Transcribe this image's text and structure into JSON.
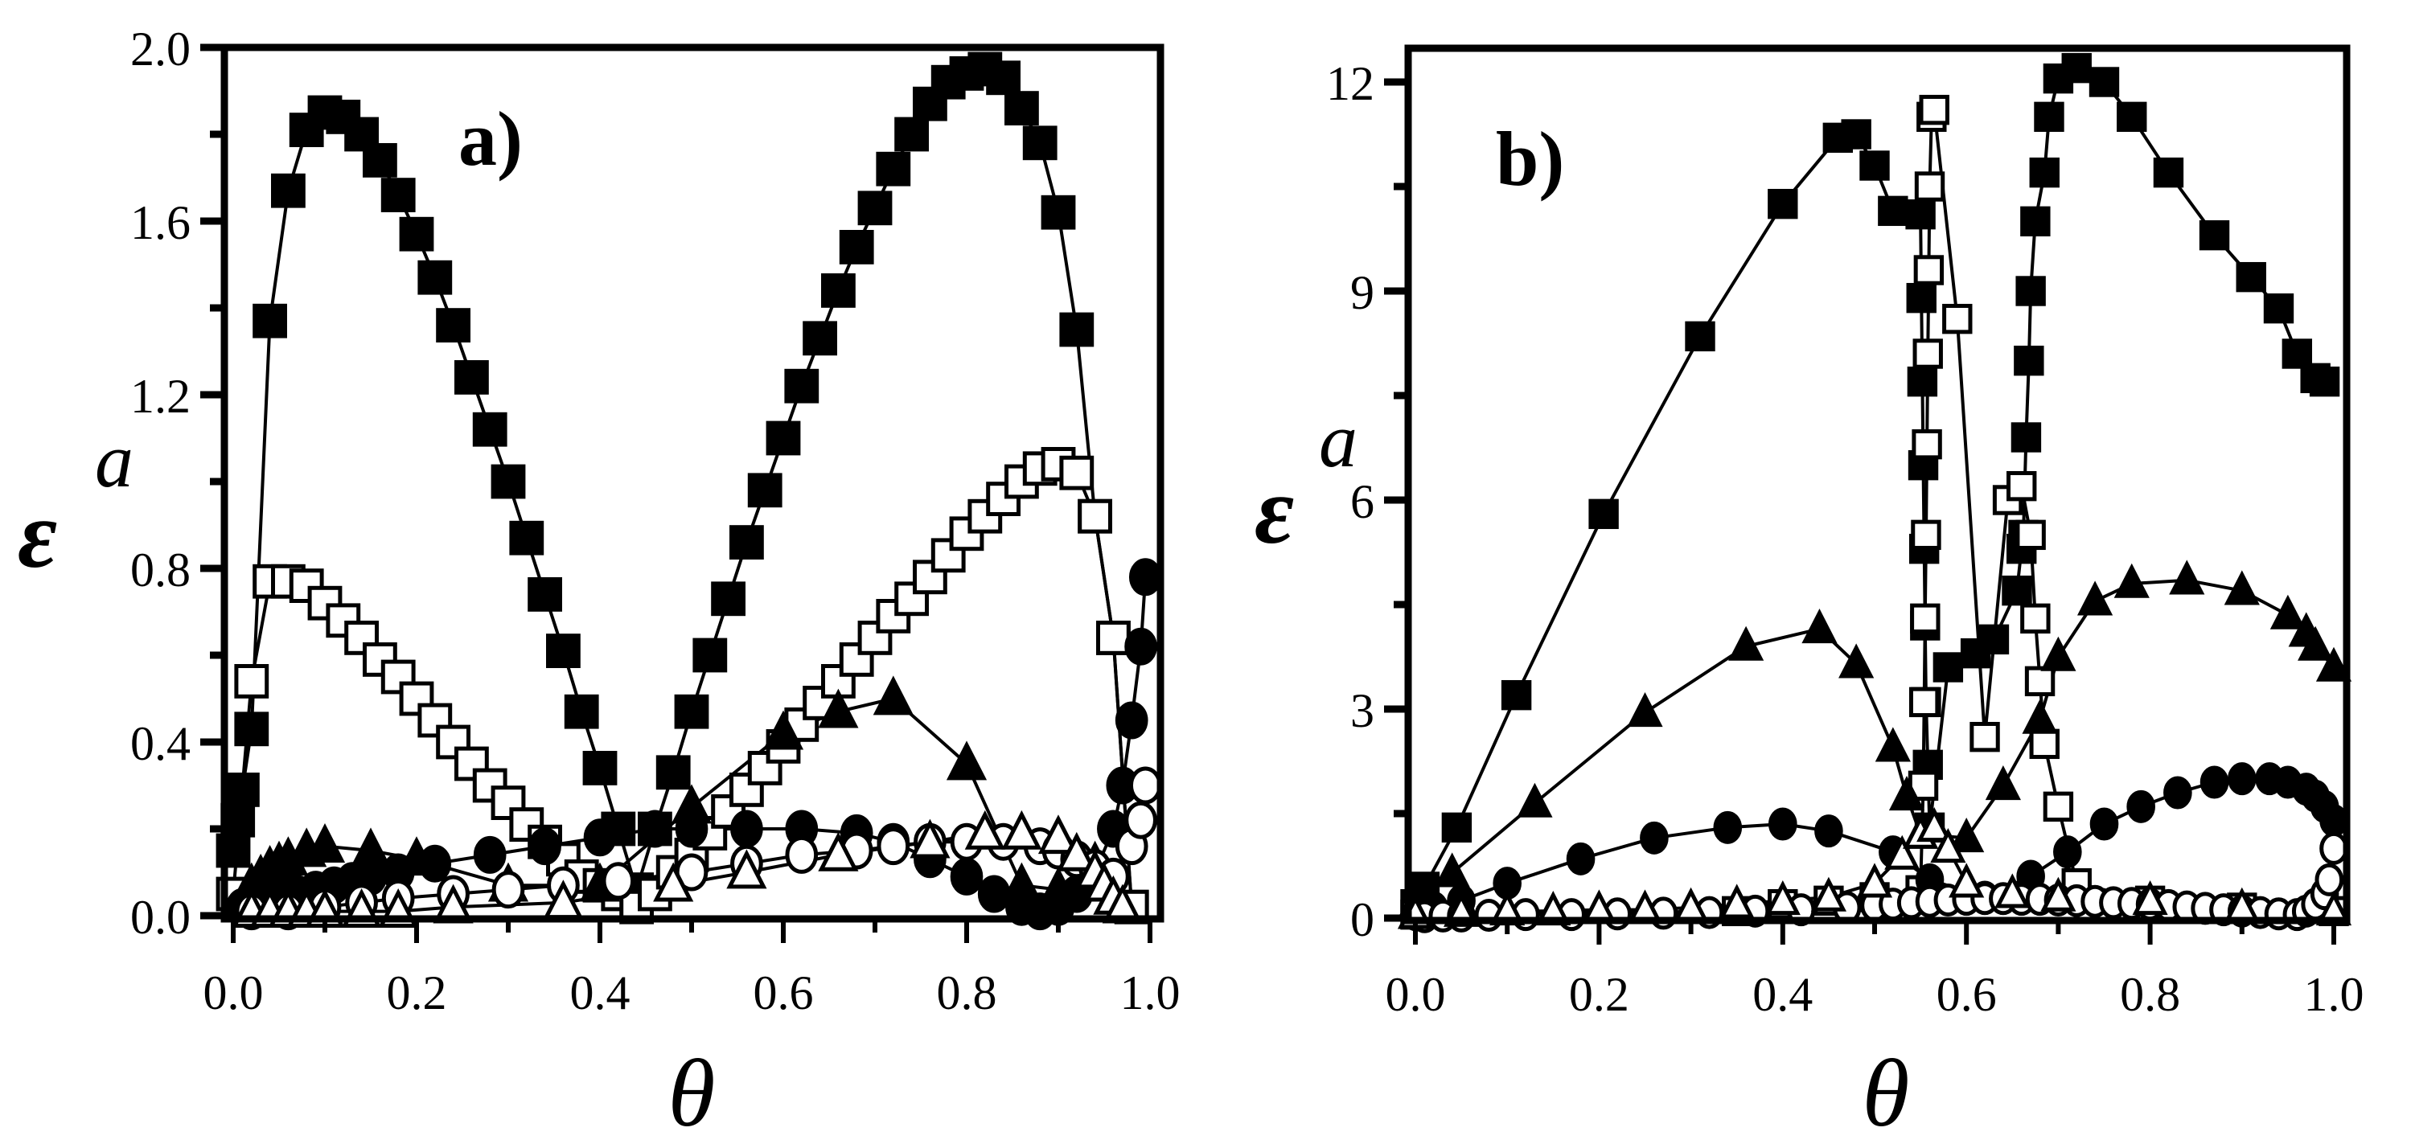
{
  "figure": {
    "panels": [
      {
        "tag": "a)",
        "xlabel": "θ",
        "ylabel_main": "ε",
        "ylabel_sup": "a"
      },
      {
        "tag": "b)",
        "xlabel": "θ",
        "ylabel_main": "ε",
        "ylabel_sup": "a"
      }
    ]
  },
  "chart_data": [
    {
      "type": "line",
      "title": "a)",
      "xlabel": "θ",
      "ylabel": "ε^a",
      "xlim": [
        0.0,
        1.0
      ],
      "ylim": [
        0.0,
        2.0
      ],
      "xticks": [
        0.0,
        0.2,
        0.4,
        0.6,
        0.8,
        1.0
      ],
      "xtick_labels": [
        "0.0",
        "0.2",
        "0.4",
        "0.6",
        "0.8",
        "1.0"
      ],
      "yticks": [
        0.0,
        0.4,
        0.8,
        1.2,
        1.6,
        2.0
      ],
      "ytick_labels": [
        "0.0",
        "0.4",
        "0.8",
        "1.2",
        "1.6",
        "2.0"
      ],
      "grid": false,
      "legend": null,
      "series": [
        {
          "name": "filled squares",
          "marker": "square-filled",
          "x": [
            0.0,
            0.005,
            0.01,
            0.02,
            0.04,
            0.06,
            0.08,
            0.1,
            0.12,
            0.14,
            0.16,
            0.18,
            0.2,
            0.22,
            0.24,
            0.26,
            0.28,
            0.3,
            0.32,
            0.34,
            0.36,
            0.38,
            0.4,
            0.42,
            0.44,
            0.46,
            0.48,
            0.5,
            0.52,
            0.54,
            0.56,
            0.58,
            0.6,
            0.62,
            0.64,
            0.66,
            0.68,
            0.7,
            0.72,
            0.74,
            0.76,
            0.78,
            0.8,
            0.82,
            0.84,
            0.86,
            0.88,
            0.9,
            0.92,
            0.94,
            0.96,
            0.98
          ],
          "y": [
            0.15,
            0.22,
            0.29,
            0.43,
            1.37,
            1.67,
            1.81,
            1.85,
            1.84,
            1.8,
            1.74,
            1.66,
            1.57,
            1.47,
            1.36,
            1.24,
            1.12,
            1.0,
            0.87,
            0.74,
            0.61,
            0.47,
            0.34,
            0.2,
            0.06,
            0.2,
            0.33,
            0.47,
            0.6,
            0.73,
            0.86,
            0.98,
            1.1,
            1.22,
            1.33,
            1.44,
            1.54,
            1.63,
            1.72,
            1.8,
            1.87,
            1.92,
            1.94,
            1.95,
            1.93,
            1.86,
            1.78,
            1.62,
            1.35,
            0.92,
            0.64,
            0.02
          ]
        },
        {
          "name": "open squares",
          "marker": "square-open",
          "x": [
            0.0,
            0.02,
            0.04,
            0.06,
            0.08,
            0.1,
            0.12,
            0.14,
            0.16,
            0.18,
            0.2,
            0.22,
            0.24,
            0.26,
            0.28,
            0.3,
            0.32,
            0.34,
            0.36,
            0.38,
            0.4,
            0.42,
            0.44,
            0.46,
            0.48,
            0.5,
            0.52,
            0.54,
            0.56,
            0.58,
            0.6,
            0.62,
            0.64,
            0.66,
            0.68,
            0.7,
            0.72,
            0.74,
            0.76,
            0.78,
            0.8,
            0.82,
            0.84,
            0.86,
            0.88,
            0.9,
            0.92,
            0.94,
            0.96,
            0.98
          ],
          "y": [
            0.05,
            0.54,
            0.77,
            0.77,
            0.76,
            0.72,
            0.68,
            0.64,
            0.59,
            0.55,
            0.5,
            0.45,
            0.4,
            0.35,
            0.3,
            0.26,
            0.21,
            0.17,
            0.13,
            0.09,
            0.07,
            0.05,
            0.02,
            0.05,
            0.1,
            0.14,
            0.19,
            0.24,
            0.29,
            0.34,
            0.39,
            0.44,
            0.49,
            0.54,
            0.59,
            0.64,
            0.69,
            0.73,
            0.78,
            0.83,
            0.88,
            0.92,
            0.96,
            1.0,
            1.03,
            1.04,
            1.02,
            0.92,
            0.64,
            0.02
          ]
        },
        {
          "name": "filled triangles",
          "marker": "triangle-filled",
          "x": [
            0.02,
            0.03,
            0.04,
            0.05,
            0.06,
            0.08,
            0.1,
            0.15,
            0.2,
            0.3,
            0.4,
            0.5,
            0.6,
            0.66,
            0.72,
            0.8,
            0.86,
            0.9,
            0.94
          ],
          "y": [
            0.07,
            0.09,
            0.11,
            0.12,
            0.13,
            0.15,
            0.16,
            0.15,
            0.13,
            0.07,
            0.07,
            0.25,
            0.42,
            0.47,
            0.5,
            0.35,
            0.07,
            0.06,
            0.12
          ],
          "curve_points": [
            0.72,
            0.82
          ]
        },
        {
          "name": "filled circles",
          "marker": "circle-filled",
          "x": [
            0.01,
            0.03,
            0.05,
            0.07,
            0.09,
            0.11,
            0.13,
            0.15,
            0.18,
            0.22,
            0.28,
            0.34,
            0.4,
            0.46,
            0.5,
            0.56,
            0.62,
            0.68,
            0.72,
            0.76,
            0.8,
            0.83,
            0.86,
            0.88,
            0.9,
            0.92,
            0.94,
            0.96,
            0.97,
            0.98,
            0.99,
            0.995
          ],
          "y": [
            0.02,
            0.03,
            0.04,
            0.05,
            0.06,
            0.07,
            0.08,
            0.09,
            0.1,
            0.12,
            0.14,
            0.16,
            0.18,
            0.2,
            0.2,
            0.2,
            0.2,
            0.19,
            0.17,
            0.13,
            0.09,
            0.05,
            0.02,
            0.01,
            0.02,
            0.05,
            0.1,
            0.2,
            0.3,
            0.45,
            0.62,
            0.78
          ]
        },
        {
          "name": "open circles",
          "marker": "circle-open",
          "x": [
            0.02,
            0.06,
            0.1,
            0.14,
            0.18,
            0.24,
            0.3,
            0.36,
            0.42,
            0.5,
            0.56,
            0.62,
            0.68,
            0.72,
            0.76,
            0.8,
            0.84,
            0.88,
            0.9,
            0.92,
            0.94,
            0.96,
            0.98,
            0.99,
            0.995
          ],
          "y": [
            0.01,
            0.01,
            0.02,
            0.03,
            0.04,
            0.05,
            0.06,
            0.07,
            0.08,
            0.1,
            0.12,
            0.14,
            0.15,
            0.16,
            0.17,
            0.17,
            0.17,
            0.16,
            0.15,
            0.13,
            0.11,
            0.09,
            0.16,
            0.22,
            0.3
          ]
        },
        {
          "name": "open triangles",
          "marker": "triangle-open",
          "x": [
            0.02,
            0.04,
            0.06,
            0.08,
            0.1,
            0.14,
            0.18,
            0.24,
            0.36,
            0.48,
            0.56,
            0.66,
            0.76,
            0.82,
            0.86,
            0.9,
            0.92,
            0.94,
            0.95,
            0.96,
            0.97
          ],
          "y": [
            0.01,
            0.01,
            0.01,
            0.01,
            0.01,
            0.01,
            0.01,
            0.02,
            0.03,
            0.07,
            0.1,
            0.14,
            0.17,
            0.19,
            0.19,
            0.18,
            0.14,
            0.1,
            0.07,
            0.04,
            0.02
          ]
        }
      ]
    },
    {
      "type": "line",
      "title": "b)",
      "xlabel": "θ",
      "ylabel": "ε^a",
      "xlim": [
        0.0,
        1.0
      ],
      "ylim": [
        0.0,
        12.6
      ],
      "xticks": [
        0.0,
        0.2,
        0.4,
        0.6,
        0.8,
        1.0
      ],
      "xtick_labels": [
        "0.0",
        "0.2",
        "0.4",
        "0.6",
        "0.8",
        "1.0"
      ],
      "yticks": [
        0,
        3,
        6,
        9,
        12
      ],
      "ytick_labels": [
        "0",
        "3",
        "6",
        "9",
        "12"
      ],
      "grid": false,
      "legend": null,
      "series": [
        {
          "name": "filled squares",
          "marker": "square-filled",
          "x": [
            0.0,
            0.01,
            0.045,
            0.11,
            0.205,
            0.31,
            0.4,
            0.46,
            0.48,
            0.5,
            0.52,
            0.55,
            0.551,
            0.552,
            0.553,
            0.554,
            0.555,
            0.556,
            0.558,
            0.56,
            0.58,
            0.61,
            0.63,
            0.655,
            0.66,
            0.662,
            0.665,
            0.668,
            0.67,
            0.675,
            0.685,
            0.69,
            0.7,
            0.72,
            0.75,
            0.78,
            0.82,
            0.87,
            0.91,
            0.94,
            0.96,
            0.98,
            0.99
          ],
          "y": [
            0.2,
            0.45,
            1.3,
            3.2,
            5.8,
            8.35,
            10.25,
            11.2,
            11.25,
            10.8,
            10.15,
            10.1,
            8.9,
            7.7,
            6.5,
            5.3,
            4.2,
            3.1,
            2.2,
            1.3,
            3.6,
            3.8,
            4.0,
            4.7,
            5.3,
            5.5,
            6.9,
            8.0,
            9.0,
            10.0,
            10.7,
            11.5,
            12.05,
            12.2,
            12.0,
            11.5,
            10.7,
            9.8,
            9.2,
            8.75,
            8.1,
            7.75,
            7.7
          ]
        },
        {
          "name": "open squares",
          "marker": "square-open",
          "x": [
            0.0,
            0.35,
            0.4,
            0.45,
            0.5,
            0.55,
            0.553,
            0.554,
            0.555,
            0.556,
            0.557,
            0.558,
            0.559,
            0.56,
            0.562,
            0.565,
            0.59,
            0.62,
            0.645,
            0.66,
            0.67,
            0.675,
            0.68,
            0.685,
            0.7,
            0.72,
            0.8,
            0.9,
            1.0
          ],
          "y": [
            0.05,
            0.1,
            0.2,
            0.25,
            0.3,
            0.4,
            1.9,
            3.1,
            4.3,
            5.5,
            6.8,
            8.1,
            9.3,
            10.5,
            11.5,
            11.6,
            8.6,
            2.6,
            6.0,
            6.2,
            5.5,
            4.3,
            3.4,
            2.5,
            1.6,
            0.5,
            0.25,
            0.15,
            0.1
          ]
        },
        {
          "name": "filled triangles",
          "marker": "triangle-filled",
          "x": [
            0.0,
            0.04,
            0.13,
            0.25,
            0.36,
            0.44,
            0.48,
            0.52,
            0.535,
            0.55,
            0.6,
            0.64,
            0.68,
            0.7,
            0.74,
            0.78,
            0.84,
            0.9,
            0.95,
            0.97,
            0.98,
            1.0
          ],
          "y": [
            0.2,
            0.65,
            1.65,
            2.95,
            3.9,
            4.15,
            3.65,
            2.45,
            1.75,
            1.2,
            1.15,
            1.9,
            2.85,
            3.75,
            4.55,
            4.8,
            4.85,
            4.7,
            4.35,
            4.1,
            3.9,
            3.6
          ]
        },
        {
          "name": "filled circles",
          "marker": "circle-filled",
          "x": [
            0.0,
            0.02,
            0.05,
            0.1,
            0.18,
            0.26,
            0.34,
            0.4,
            0.45,
            0.52,
            0.56,
            0.62,
            0.67,
            0.71,
            0.75,
            0.79,
            0.83,
            0.87,
            0.9,
            0.93,
            0.95,
            0.97,
            0.98,
            0.99,
            1.0
          ],
          "y": [
            0.05,
            0.15,
            0.25,
            0.5,
            0.85,
            1.15,
            1.3,
            1.35,
            1.25,
            0.95,
            0.55,
            0.3,
            0.6,
            0.95,
            1.35,
            1.6,
            1.8,
            1.95,
            2.0,
            2.0,
            1.95,
            1.85,
            1.75,
            1.6,
            1.4
          ]
        },
        {
          "name": "open circles",
          "marker": "circle-open",
          "x": [
            0.01,
            0.03,
            0.05,
            0.08,
            0.12,
            0.17,
            0.22,
            0.27,
            0.32,
            0.37,
            0.42,
            0.47,
            0.5,
            0.52,
            0.54,
            0.56,
            0.58,
            0.6,
            0.62,
            0.64,
            0.66,
            0.68,
            0.7,
            0.72,
            0.74,
            0.76,
            0.78,
            0.8,
            0.82,
            0.84,
            0.86,
            0.88,
            0.9,
            0.92,
            0.94,
            0.96,
            0.97,
            0.98,
            0.99,
            0.995,
            1.0
          ],
          "y": [
            0.02,
            0.03,
            0.03,
            0.04,
            0.05,
            0.05,
            0.06,
            0.07,
            0.08,
            0.1,
            0.12,
            0.15,
            0.18,
            0.2,
            0.22,
            0.24,
            0.26,
            0.27,
            0.28,
            0.28,
            0.27,
            0.27,
            0.26,
            0.25,
            0.24,
            0.22,
            0.21,
            0.2,
            0.18,
            0.16,
            0.14,
            0.12,
            0.1,
            0.08,
            0.06,
            0.05,
            0.1,
            0.2,
            0.35,
            0.55,
            1.0
          ]
        },
        {
          "name": "open triangles",
          "marker": "triangle-open",
          "x": [
            0.0,
            0.05,
            0.1,
            0.15,
            0.2,
            0.25,
            0.3,
            0.35,
            0.4,
            0.45,
            0.5,
            0.53,
            0.55,
            0.565,
            0.58,
            0.6,
            0.65,
            0.7,
            0.8,
            0.9,
            1.0
          ],
          "y": [
            0.05,
            0.08,
            0.1,
            0.1,
            0.12,
            0.12,
            0.15,
            0.2,
            0.25,
            0.3,
            0.5,
            0.9,
            1.2,
            1.3,
            1.0,
            0.5,
            0.35,
            0.3,
            0.25,
            0.15,
            0.1
          ]
        }
      ]
    }
  ]
}
